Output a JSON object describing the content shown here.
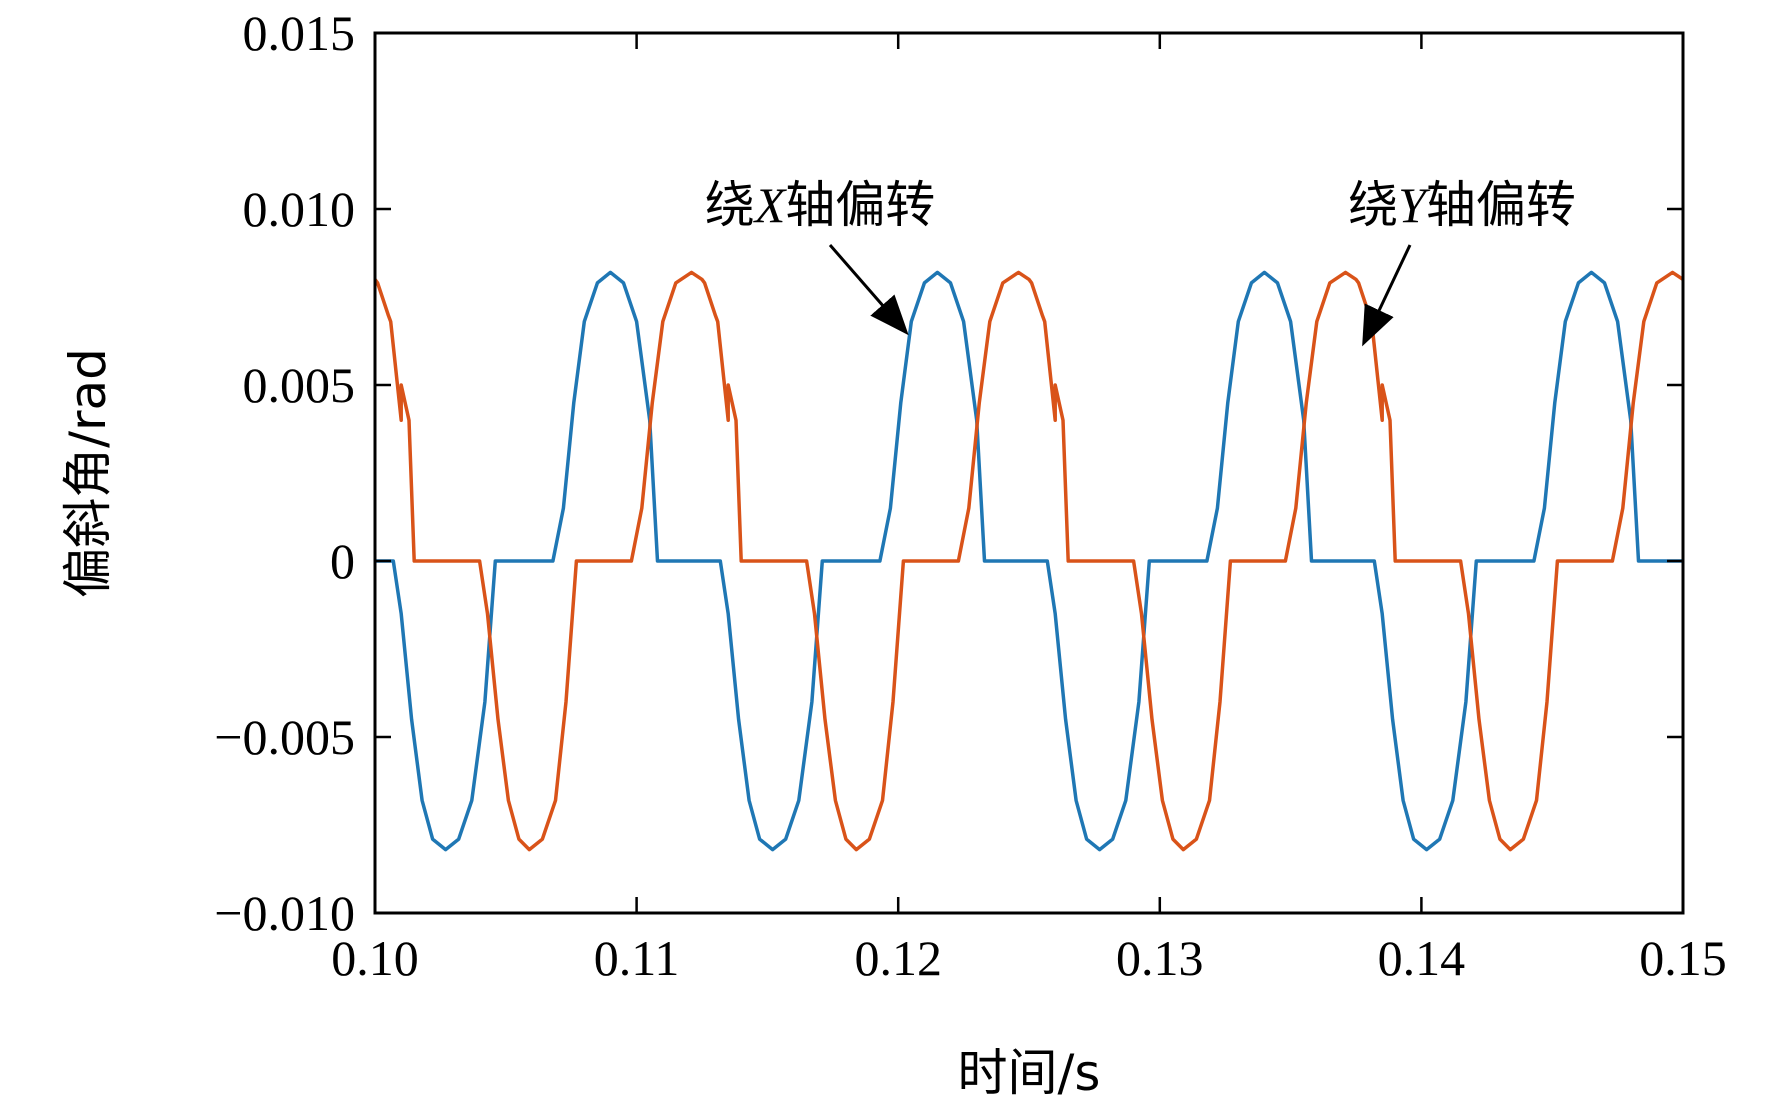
{
  "chart_data": {
    "type": "line",
    "title": "",
    "xlabel": "时间/s",
    "ylabel": "偏斜角/rad",
    "xlim": [
      0.1,
      0.15
    ],
    "ylim": [
      -0.01,
      0.015
    ],
    "xticks": [
      0.1,
      0.11,
      0.12,
      0.13,
      0.14,
      0.15
    ],
    "xtick_labels": [
      "0.10",
      "0.11",
      "0.12",
      "0.13",
      "0.14",
      "0.15"
    ],
    "yticks": [
      -0.01,
      -0.005,
      0,
      0.005,
      0.01,
      0.015
    ],
    "ytick_labels": [
      "−0.010",
      "−0.005",
      "0",
      "0.005",
      "0.010",
      "0.015"
    ],
    "grid": false,
    "period": 0.0125,
    "amplitude": 0.0082,
    "series": [
      {
        "color": "#1f77b4",
        "points": [
          [
            0.1,
            0.0
          ],
          [
            0.1007,
            0.0
          ],
          [
            0.101,
            -0.0015
          ],
          [
            0.1014,
            -0.0045
          ],
          [
            0.1018,
            -0.0068
          ],
          [
            0.1022,
            -0.0079
          ],
          [
            0.1027,
            -0.0082
          ],
          [
            0.1032,
            -0.0079
          ],
          [
            0.1037,
            -0.0068
          ],
          [
            0.1042,
            -0.004
          ],
          [
            0.1046,
            0.0
          ],
          [
            0.1068,
            0.0
          ],
          [
            0.1072,
            0.0015
          ],
          [
            0.1076,
            0.0045
          ],
          [
            0.108,
            0.0068
          ],
          [
            0.1085,
            0.0079
          ],
          [
            0.109,
            0.0082
          ],
          [
            0.1095,
            0.0079
          ],
          [
            0.11,
            0.0068
          ],
          [
            0.1105,
            0.004
          ],
          [
            0.1108,
            0.0
          ]
        ]
      },
      {
        "color": "#d95319",
        "points": [
          [
            0.1,
            0.008
          ],
          [
            0.1005,
            0.007
          ],
          [
            0.101,
            0.005
          ],
          [
            0.1013,
            0.004
          ],
          [
            0.1015,
            0.0
          ],
          [
            0.104,
            0.0
          ],
          [
            0.1043,
            -0.0015
          ],
          [
            0.1047,
            -0.0045
          ],
          [
            0.1051,
            -0.0068
          ],
          [
            0.1055,
            -0.0079
          ],
          [
            0.1059,
            -0.0082
          ],
          [
            0.1064,
            -0.0079
          ],
          [
            0.1069,
            -0.0068
          ],
          [
            0.1073,
            -0.004
          ],
          [
            0.1077,
            0.0
          ],
          [
            0.1098,
            0.0
          ],
          [
            0.1102,
            0.0015
          ],
          [
            0.1106,
            0.0045
          ],
          [
            0.111,
            0.0068
          ],
          [
            0.1115,
            0.0079
          ],
          [
            0.1121,
            0.0082
          ],
          [
            0.1126,
            0.0079
          ],
          [
            0.1131,
            0.0068
          ],
          [
            0.1135,
            0.004
          ],
          [
            0.114,
            0.0
          ]
        ]
      }
    ],
    "annotations": [
      {
        "text_prefix": "绕",
        "text_var": "X",
        "text_suffix": "轴偏转",
        "arrow_to": [
          0.1203,
          0.0065
        ]
      },
      {
        "text_prefix": "绕",
        "text_var": "Y",
        "text_suffix": "轴偏转",
        "arrow_to": [
          0.1378,
          0.0062
        ]
      }
    ]
  }
}
